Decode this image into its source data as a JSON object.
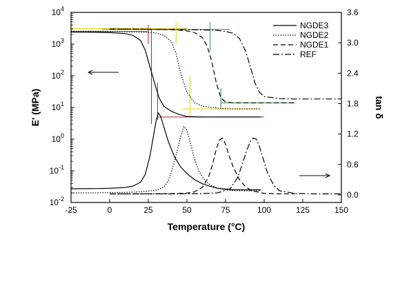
{
  "chart_data": {
    "type": "line",
    "xlabel": "Temperature (°C)",
    "ylabel_left": "E' (MPa)",
    "ylabel_right": "tan δ",
    "xlim": [
      -25,
      150
    ],
    "x_ticks": [
      -25,
      0,
      25,
      50,
      75,
      100,
      125,
      150
    ],
    "y_left_scale": "log",
    "y_left_lim": [
      0.01,
      10000
    ],
    "y_left_ticks": [
      {
        "base": "10",
        "exp": "-2"
      },
      {
        "base": "10",
        "exp": "-1"
      },
      {
        "base": "10",
        "exp": "0"
      },
      {
        "base": "10",
        "exp": "1"
      },
      {
        "base": "10",
        "exp": "2"
      },
      {
        "base": "10",
        "exp": "3"
      },
      {
        "base": "10",
        "exp": "4"
      }
    ],
    "y_right_lim": [
      -0.15,
      3.6
    ],
    "y_right_ticks": [
      "0.0",
      "0.6",
      "1.2",
      "1.8",
      "2.4",
      "3.0",
      "3.6"
    ],
    "grid": false,
    "legend_position": "top-right",
    "legend": [
      "NGDE3",
      "NGDE2",
      "NGDE1",
      "REF"
    ],
    "series": [
      {
        "name": "NGDE3",
        "style": "solid",
        "axis": "left",
        "x": [
          -25,
          -10,
          0,
          10,
          15,
          20,
          23,
          26,
          29,
          32,
          35,
          40,
          45,
          50,
          60,
          70,
          80,
          90,
          98
        ],
        "y": [
          2400,
          2350,
          2300,
          2150,
          1900,
          1300,
          650,
          200,
          60,
          20,
          11,
          7.5,
          6,
          5.2,
          5,
          5,
          5,
          5,
          5
        ]
      },
      {
        "name": "NGDE2",
        "style": "dotted",
        "axis": "left",
        "x": [
          -25,
          -10,
          0,
          10,
          20,
          30,
          35,
          40,
          43,
          46,
          50,
          55,
          60,
          70,
          80,
          90,
          98
        ],
        "y": [
          2550,
          2550,
          2500,
          2450,
          2400,
          2250,
          1900,
          1200,
          500,
          120,
          30,
          14,
          11,
          9.5,
          9,
          9,
          9
        ]
      },
      {
        "name": "NGDE1",
        "style": "dashed",
        "axis": "left",
        "x": [
          0,
          10,
          20,
          30,
          40,
          45,
          50,
          55,
          60,
          63,
          66,
          69,
          72,
          75,
          80,
          90,
          100,
          110,
          120
        ],
        "y": [
          3000,
          2950,
          2950,
          2900,
          2850,
          2750,
          2600,
          2300,
          1600,
          900,
          300,
          60,
          20,
          15,
          14,
          14,
          14,
          14,
          14
        ]
      },
      {
        "name": "REF",
        "style": "dashdot",
        "axis": "left",
        "x": [
          0,
          20,
          40,
          60,
          70,
          75,
          80,
          84,
          88,
          91,
          94,
          97,
          100,
          110,
          120,
          130,
          140,
          150
        ],
        "y": [
          3000,
          2950,
          2900,
          2800,
          2700,
          2500,
          2200,
          1500,
          600,
          200,
          60,
          30,
          22,
          19,
          18.5,
          18.5,
          18.5,
          18.5
        ]
      },
      {
        "name": "NGDE3",
        "style": "solid",
        "axis": "right",
        "x": [
          -25,
          -10,
          0,
          10,
          15,
          20,
          23,
          26,
          28,
          30,
          31.5,
          33,
          35,
          38,
          42,
          46,
          50,
          55,
          60,
          65,
          70,
          80,
          90,
          98
        ],
        "y": [
          0.12,
          0.125,
          0.13,
          0.145,
          0.17,
          0.25,
          0.4,
          0.75,
          1.1,
          1.45,
          1.62,
          1.55,
          1.35,
          1.05,
          0.75,
          0.55,
          0.42,
          0.3,
          0.22,
          0.17,
          0.13,
          0.1,
          0.1,
          0.1
        ]
      },
      {
        "name": "NGDE2",
        "style": "dotted",
        "axis": "right",
        "x": [
          -25,
          -10,
          0,
          10,
          20,
          30,
          35,
          38,
          41,
          44,
          46,
          48,
          50,
          52,
          55,
          58,
          62,
          66,
          70,
          75,
          80,
          90,
          98
        ],
        "y": [
          0.04,
          0.04,
          0.045,
          0.05,
          0.06,
          0.09,
          0.15,
          0.28,
          0.55,
          0.9,
          1.15,
          1.35,
          1.28,
          1.05,
          0.7,
          0.45,
          0.27,
          0.18,
          0.13,
          0.1,
          0.085,
          0.08,
          0.08
        ]
      },
      {
        "name": "NGDE1",
        "style": "dashed",
        "axis": "right",
        "x": [
          0,
          20,
          40,
          50,
          55,
          60,
          64,
          67,
          69,
          71,
          73,
          75,
          77,
          80,
          84,
          88,
          92,
          100,
          110,
          120
        ],
        "y": [
          0.02,
          0.02,
          0.025,
          0.035,
          0.06,
          0.15,
          0.35,
          0.65,
          0.9,
          1.08,
          1.12,
          1.0,
          0.8,
          0.55,
          0.3,
          0.16,
          0.08,
          0.03,
          0.02,
          0.02
        ]
      },
      {
        "name": "REF",
        "style": "dashdot",
        "axis": "right",
        "x": [
          0,
          20,
          40,
          60,
          70,
          78,
          83,
          86,
          89,
          91,
          93,
          95,
          97,
          99,
          102,
          106,
          110,
          120,
          130,
          140,
          150
        ],
        "y": [
          0.02,
          0.02,
          0.02,
          0.025,
          0.04,
          0.12,
          0.35,
          0.62,
          0.9,
          1.05,
          1.12,
          1.1,
          0.95,
          0.75,
          0.45,
          0.2,
          0.08,
          0.03,
          0.02,
          0.02,
          0.02
        ]
      }
    ],
    "annotation_arrows": [
      {
        "direction": "left",
        "points_to_axis": "left"
      },
      {
        "direction": "right",
        "points_to_axis": "right"
      }
    ]
  }
}
